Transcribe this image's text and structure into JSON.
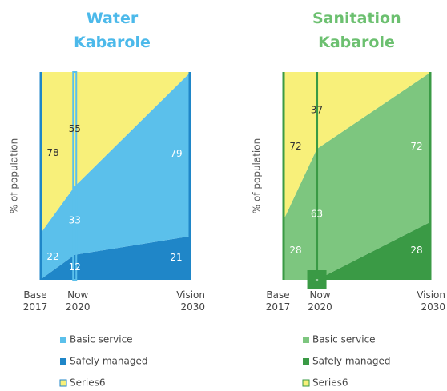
{
  "chart_data": [
    {
      "type": "area",
      "stacked": true,
      "title": "Water Kabarole",
      "title_color": "#4cb9ea",
      "y_label": "% of population",
      "categories": [
        "Base 2017",
        "Now 2020",
        "Vision 2030"
      ],
      "ylim": [
        0,
        100
      ],
      "series": [
        {
          "name": "Safely managed",
          "color": "#1f86c8",
          "values": [
            0,
            12,
            21
          ],
          "value_labels": [
            null,
            "12",
            "21"
          ]
        },
        {
          "name": "Basic service",
          "color": "#5bc0eb",
          "values": [
            22,
            33,
            79
          ],
          "value_labels": [
            "22",
            "33",
            "79"
          ]
        },
        {
          "name": "Series6",
          "color": "#f8f07a",
          "values": [
            78,
            55,
            0
          ],
          "value_labels": [
            "78",
            "55",
            null
          ]
        }
      ]
    },
    {
      "type": "area",
      "stacked": true,
      "title": "Sanitation Kabarole",
      "title_color": "#6cc070",
      "y_label": "% of population",
      "categories": [
        "Base 2017",
        "Now 2020",
        "Vision 2030"
      ],
      "ylim": [
        0,
        100
      ],
      "series": [
        {
          "name": "Safely managed",
          "color": "#3a9a45",
          "values": [
            0,
            0,
            28
          ],
          "value_labels": [
            null,
            "-",
            "28"
          ]
        },
        {
          "name": "Basic service",
          "color": "#7dc67f",
          "values": [
            28,
            63,
            72
          ],
          "value_labels": [
            "28",
            "63",
            "72"
          ]
        },
        {
          "name": "Series6",
          "color": "#f8f07a",
          "values": [
            72,
            37,
            0
          ],
          "value_labels": [
            "72",
            "37",
            null
          ]
        }
      ]
    }
  ]
}
